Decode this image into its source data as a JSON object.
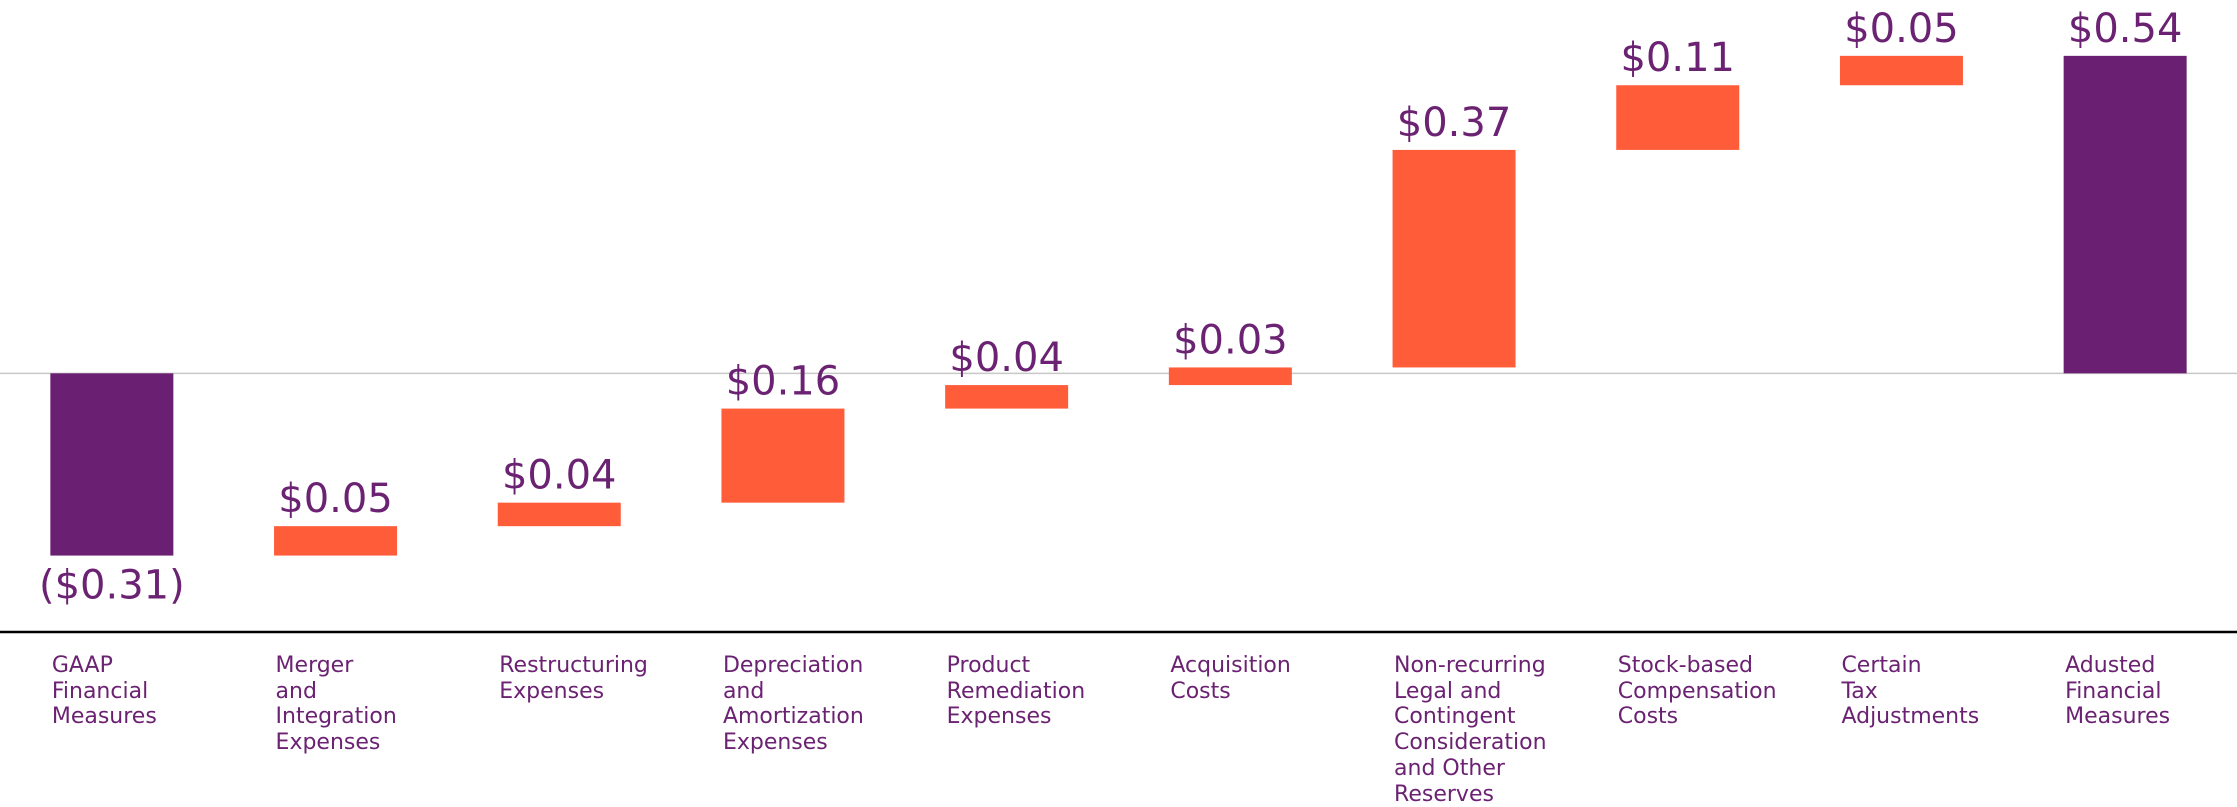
{
  "chart_data": {
    "type": "waterfall",
    "categories": [
      "GAAP\nFinancial\nMeasures",
      "Merger\nand\nIntegration\nExpenses",
      "Restructuring\nExpenses",
      "Depreciation\nand\nAmortization\nExpenses",
      "Product\nRemediation\nExpenses",
      "Acquisition\nCosts",
      "Non-recurring\nLegal and\nContingent\nConsideration\nand Other\nReserves",
      "Stock-based\nCompensation\nCosts",
      "Certain\nTax\nAdjustments",
      "Adusted\nFinancial\nMeasures"
    ],
    "values": [
      -0.31,
      0.05,
      0.04,
      0.16,
      0.04,
      0.03,
      0.37,
      0.11,
      0.05,
      0.54
    ],
    "value_labels": [
      "($0.31)",
      "$0.05",
      "$0.04",
      "$0.16",
      "$0.04",
      "$0.03",
      "$0.37",
      "$0.11",
      "$0.05",
      "$0.54"
    ],
    "measure": [
      "absolute",
      "relative",
      "relative",
      "relative",
      "relative",
      "relative",
      "relative",
      "relative",
      "relative",
      "total"
    ],
    "total_color": "#6a1f72",
    "increase_color": "#ff5c39",
    "ylim": [
      -0.44,
      0.635
    ]
  }
}
